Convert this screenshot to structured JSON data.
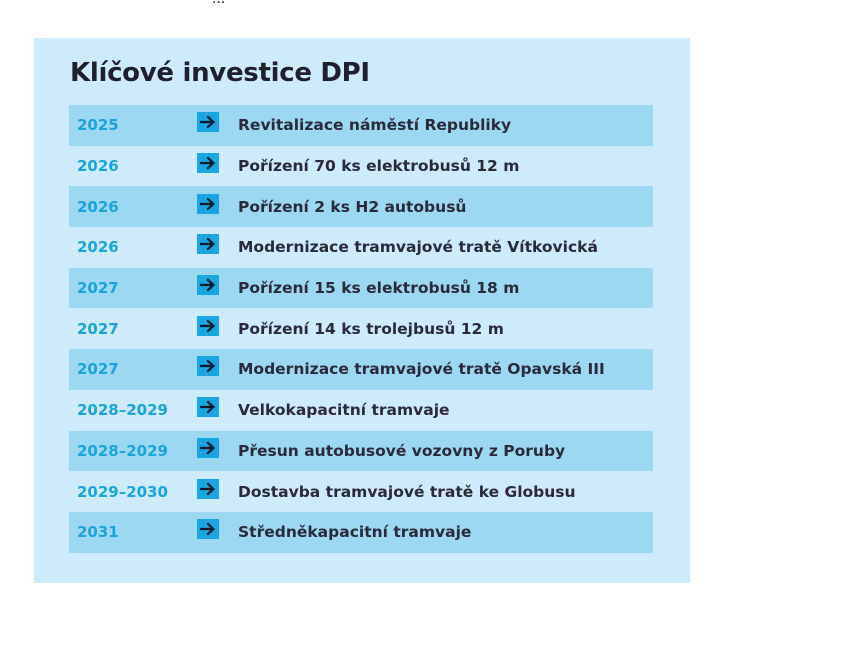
{
  "header": {
    "cut_text": "..."
  },
  "panel": {
    "title": "Klíčové investice DPI",
    "background_color": "#cdebfa",
    "row_shade_color": "#9dd8f3",
    "year_color": "#1aa3dc",
    "arrow_color": "#1aa6e2",
    "arrow_icon": "arrow-right-icon",
    "rows": [
      {
        "year": "2025",
        "description": "Revitalizace náměstí Republiky",
        "shaded": true
      },
      {
        "year": "2026",
        "description": "Pořízení 70 ks elektrobusů 12 m",
        "shaded": false
      },
      {
        "year": "2026",
        "description": "Pořízení 2 ks H2 autobusů",
        "shaded": true
      },
      {
        "year": "2026",
        "description": "Modernizace tramvajové tratě Vítkovická",
        "shaded": false
      },
      {
        "year": "2027",
        "description": "Pořízení 15 ks elektrobusů 18 m",
        "shaded": true
      },
      {
        "year": "2027",
        "description": "Pořízení 14 ks trolejbusů 12 m",
        "shaded": false
      },
      {
        "year": "2027",
        "description": "Modernizace  tramvajové tratě Opavská III",
        "shaded": true
      },
      {
        "year": "2028–2029",
        "description": "Velkokapacitní tramvaje",
        "shaded": false
      },
      {
        "year": "2028–2029",
        "description": "Přesun autobusové vozovny z Poruby",
        "shaded": true
      },
      {
        "year": "2029–2030",
        "description": "Dostavba  tramvajové tratě ke Globusu",
        "shaded": false
      },
      {
        "year": "2031",
        "description": "Středněkapacitní tramvaje",
        "shaded": true
      }
    ]
  }
}
